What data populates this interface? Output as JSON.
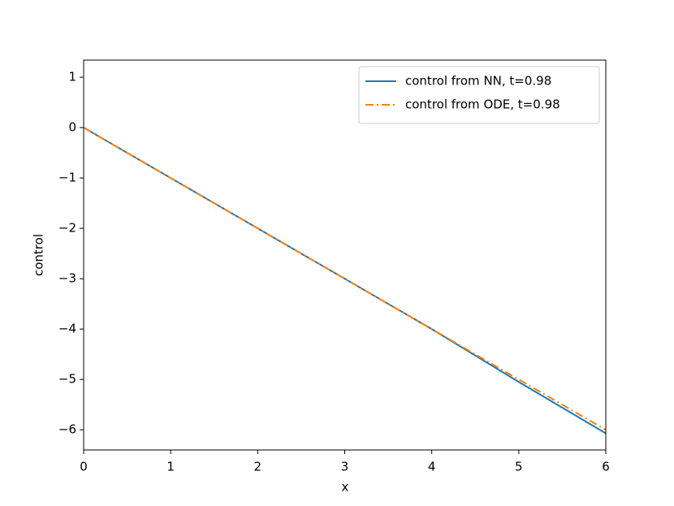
{
  "chart_data": {
    "type": "line",
    "x_label": "x",
    "y_label": "control",
    "x": [
      0,
      1,
      2,
      3,
      4,
      5,
      6
    ],
    "series": [
      {
        "name": "control from NN, t=0.98",
        "color": "#1f77b4",
        "dash": "solid",
        "values": [
          0,
          -1,
          -2,
          -3,
          -4,
          -5.05,
          -6.07
        ]
      },
      {
        "name": "control from ODE, t=0.98",
        "color": "#ff7f0e",
        "dash": "dashdot",
        "values": [
          0,
          -1,
          -2,
          -3,
          -4,
          -5,
          -6
        ]
      }
    ],
    "xlim": [
      0,
      6
    ],
    "xticks": [
      0,
      1,
      2,
      3,
      4,
      5,
      6
    ],
    "ylim": [
      -6.4,
      1.34
    ],
    "yticks": [
      {
        "value": -6,
        "label": "−6"
      },
      {
        "value": -5,
        "label": "−5"
      },
      {
        "value": -4,
        "label": "−4"
      },
      {
        "value": -3,
        "label": "−3"
      },
      {
        "value": -2,
        "label": "−2"
      },
      {
        "value": -1,
        "label": "−1"
      },
      0,
      1
    ],
    "grid": false,
    "legend": "upper right"
  }
}
